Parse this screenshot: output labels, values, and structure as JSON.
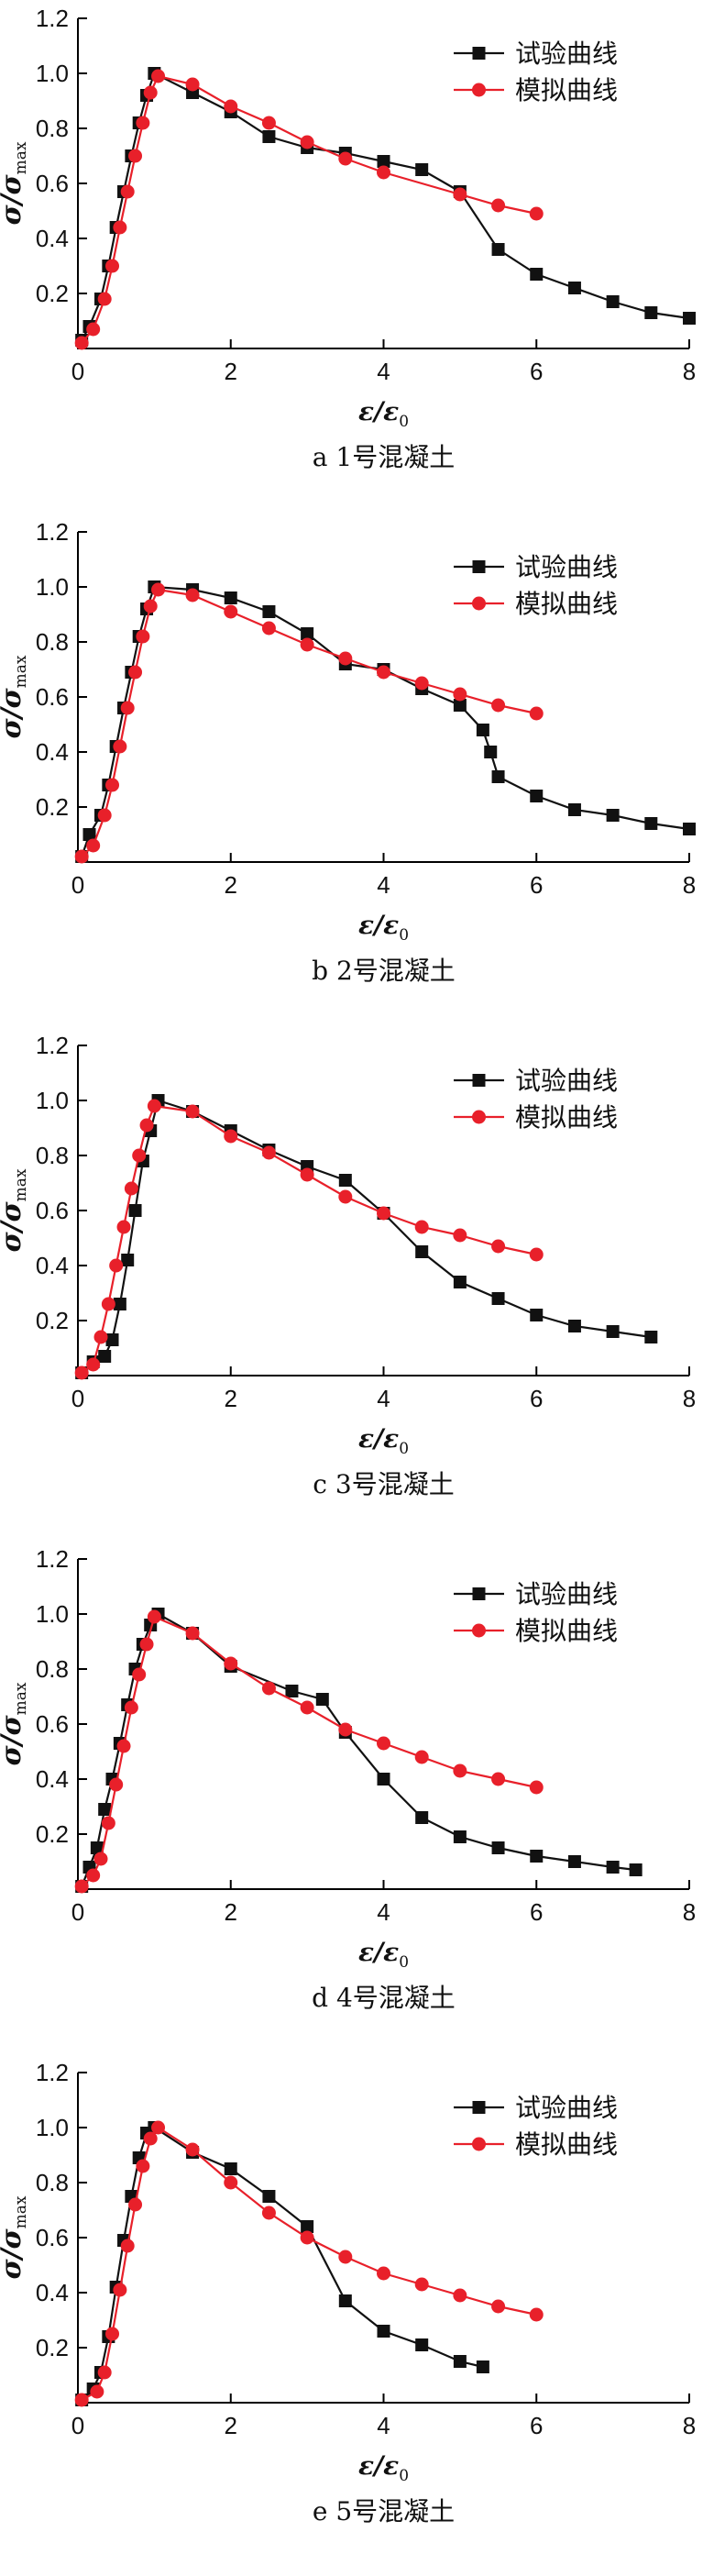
{
  "legend": {
    "test_label": "试验曲线",
    "sim_label": "模拟曲线"
  },
  "colors": {
    "test": "#111111",
    "sim": "#e8202a"
  },
  "axis": {
    "ylabel_main": "σ/σ",
    "ylabel_sub": "max",
    "xlabel_main": "ε/ε",
    "xlabel_sub": "0",
    "x_ticks": [
      "0",
      "2",
      "4",
      "6",
      "8"
    ],
    "y_ticks": [
      "0.2",
      "0.4",
      "0.6",
      "0.8",
      "1.0",
      "1.2"
    ]
  },
  "chart_data": [
    {
      "type": "line",
      "caption": "a  1号混凝土",
      "xlim": [
        0,
        8
      ],
      "ylim": [
        0,
        1.2
      ],
      "series": [
        {
          "name": "试验曲线",
          "x": [
            0.05,
            0.15,
            0.3,
            0.4,
            0.5,
            0.6,
            0.7,
            0.8,
            0.9,
            1.0,
            1.5,
            2.0,
            2.5,
            3.0,
            3.5,
            4.0,
            4.5,
            5.0,
            5.5,
            6.0,
            6.5,
            7.0,
            7.5,
            8.0
          ],
          "y": [
            0.03,
            0.08,
            0.18,
            0.3,
            0.44,
            0.57,
            0.7,
            0.82,
            0.92,
            1.0,
            0.93,
            0.86,
            0.77,
            0.73,
            0.71,
            0.68,
            0.65,
            0.57,
            0.36,
            0.27,
            0.22,
            0.17,
            0.13,
            0.11
          ]
        },
        {
          "name": "模拟曲线",
          "x": [
            0.05,
            0.2,
            0.35,
            0.45,
            0.55,
            0.65,
            0.75,
            0.85,
            0.95,
            1.05,
            1.5,
            2.0,
            2.5,
            3.0,
            3.5,
            4.0,
            5.0,
            5.5,
            6.0
          ],
          "y": [
            0.02,
            0.07,
            0.18,
            0.3,
            0.44,
            0.57,
            0.7,
            0.82,
            0.93,
            0.99,
            0.96,
            0.88,
            0.82,
            0.75,
            0.69,
            0.64,
            0.56,
            0.52,
            0.49
          ]
        }
      ]
    },
    {
      "type": "line",
      "caption": "b  2号混凝土",
      "xlim": [
        0,
        8
      ],
      "ylim": [
        0,
        1.2
      ],
      "series": [
        {
          "name": "试验曲线",
          "x": [
            0.05,
            0.15,
            0.3,
            0.4,
            0.5,
            0.6,
            0.7,
            0.8,
            0.9,
            1.0,
            1.5,
            2.0,
            2.5,
            3.0,
            3.5,
            4.0,
            4.5,
            5.0,
            5.3,
            5.4,
            5.5,
            6.0,
            6.5,
            7.0,
            7.5,
            8.0
          ],
          "y": [
            0.02,
            0.1,
            0.17,
            0.28,
            0.42,
            0.56,
            0.69,
            0.82,
            0.92,
            1.0,
            0.99,
            0.96,
            0.91,
            0.83,
            0.72,
            0.7,
            0.63,
            0.57,
            0.48,
            0.4,
            0.31,
            0.24,
            0.19,
            0.17,
            0.14,
            0.12
          ]
        },
        {
          "name": "模拟曲线",
          "x": [
            0.05,
            0.2,
            0.35,
            0.45,
            0.55,
            0.65,
            0.75,
            0.85,
            0.95,
            1.05,
            1.5,
            2.0,
            2.5,
            3.0,
            3.5,
            4.0,
            4.5,
            5.0,
            5.5,
            6.0
          ],
          "y": [
            0.02,
            0.06,
            0.17,
            0.28,
            0.42,
            0.56,
            0.69,
            0.82,
            0.93,
            0.99,
            0.97,
            0.91,
            0.85,
            0.79,
            0.74,
            0.69,
            0.65,
            0.61,
            0.57,
            0.54
          ]
        }
      ]
    },
    {
      "type": "line",
      "caption": "c  3号混凝土",
      "xlim": [
        0,
        8
      ],
      "ylim": [
        0,
        1.2
      ],
      "series": [
        {
          "name": "试验曲线",
          "x": [
            0.05,
            0.2,
            0.35,
            0.45,
            0.55,
            0.65,
            0.75,
            0.85,
            0.95,
            1.05,
            1.5,
            2.0,
            2.5,
            3.0,
            3.5,
            4.0,
            4.5,
            5.0,
            5.5,
            6.0,
            6.5,
            7.0,
            7.5
          ],
          "y": [
            0.01,
            0.05,
            0.07,
            0.13,
            0.26,
            0.42,
            0.6,
            0.78,
            0.89,
            1.0,
            0.96,
            0.89,
            0.82,
            0.76,
            0.71,
            0.59,
            0.45,
            0.34,
            0.28,
            0.22,
            0.18,
            0.16,
            0.14
          ]
        },
        {
          "name": "模拟曲线",
          "x": [
            0.05,
            0.2,
            0.3,
            0.4,
            0.5,
            0.6,
            0.7,
            0.8,
            0.9,
            1.0,
            1.5,
            2.0,
            2.5,
            3.0,
            3.5,
            4.0,
            4.5,
            5.0,
            5.5,
            6.0
          ],
          "y": [
            0.01,
            0.04,
            0.14,
            0.26,
            0.4,
            0.54,
            0.68,
            0.8,
            0.91,
            0.98,
            0.96,
            0.87,
            0.81,
            0.73,
            0.65,
            0.59,
            0.54,
            0.51,
            0.47,
            0.44
          ]
        }
      ]
    },
    {
      "type": "line",
      "caption": "d  4号混凝土",
      "xlim": [
        0,
        8
      ],
      "ylim": [
        0,
        1.2
      ],
      "series": [
        {
          "name": "试验曲线",
          "x": [
            0.05,
            0.15,
            0.25,
            0.35,
            0.45,
            0.55,
            0.65,
            0.75,
            0.85,
            0.95,
            1.05,
            1.5,
            2.0,
            2.8,
            3.2,
            3.5,
            4.0,
            4.5,
            5.0,
            5.5,
            6.0,
            6.5,
            7.0,
            7.3
          ],
          "y": [
            0.01,
            0.08,
            0.15,
            0.29,
            0.4,
            0.53,
            0.67,
            0.8,
            0.89,
            0.96,
            1.0,
            0.93,
            0.81,
            0.72,
            0.69,
            0.57,
            0.4,
            0.26,
            0.19,
            0.15,
            0.12,
            0.1,
            0.08,
            0.07
          ]
        },
        {
          "name": "模拟曲线",
          "x": [
            0.05,
            0.2,
            0.3,
            0.4,
            0.5,
            0.6,
            0.7,
            0.8,
            0.9,
            1.0,
            1.5,
            2.0,
            2.5,
            3.0,
            3.5,
            4.0,
            4.5,
            5.0,
            5.5,
            6.0
          ],
          "y": [
            0.01,
            0.05,
            0.11,
            0.24,
            0.38,
            0.52,
            0.66,
            0.78,
            0.89,
            0.99,
            0.93,
            0.82,
            0.73,
            0.66,
            0.58,
            0.53,
            0.48,
            0.43,
            0.4,
            0.37
          ]
        }
      ]
    },
    {
      "type": "line",
      "caption": "e  5号混凝土",
      "xlim": [
        0,
        8
      ],
      "ylim": [
        0,
        1.2
      ],
      "series": [
        {
          "name": "试验曲线",
          "x": [
            0.05,
            0.2,
            0.3,
            0.4,
            0.5,
            0.6,
            0.7,
            0.8,
            0.9,
            1.0,
            1.5,
            2.0,
            2.5,
            3.0,
            3.5,
            4.0,
            4.5,
            5.0,
            5.3
          ],
          "y": [
            0.01,
            0.05,
            0.11,
            0.24,
            0.42,
            0.59,
            0.75,
            0.89,
            0.98,
            1.0,
            0.91,
            0.85,
            0.75,
            0.64,
            0.37,
            0.26,
            0.21,
            0.15,
            0.13
          ]
        },
        {
          "name": "模拟曲线",
          "x": [
            0.05,
            0.25,
            0.35,
            0.45,
            0.55,
            0.65,
            0.75,
            0.85,
            0.95,
            1.05,
            1.5,
            2.0,
            2.5,
            3.0,
            3.5,
            4.0,
            4.5,
            5.0,
            5.5,
            6.0
          ],
          "y": [
            0.01,
            0.04,
            0.11,
            0.25,
            0.41,
            0.57,
            0.72,
            0.86,
            0.96,
            1.0,
            0.92,
            0.8,
            0.69,
            0.6,
            0.53,
            0.47,
            0.43,
            0.39,
            0.35,
            0.32
          ]
        }
      ]
    }
  ]
}
